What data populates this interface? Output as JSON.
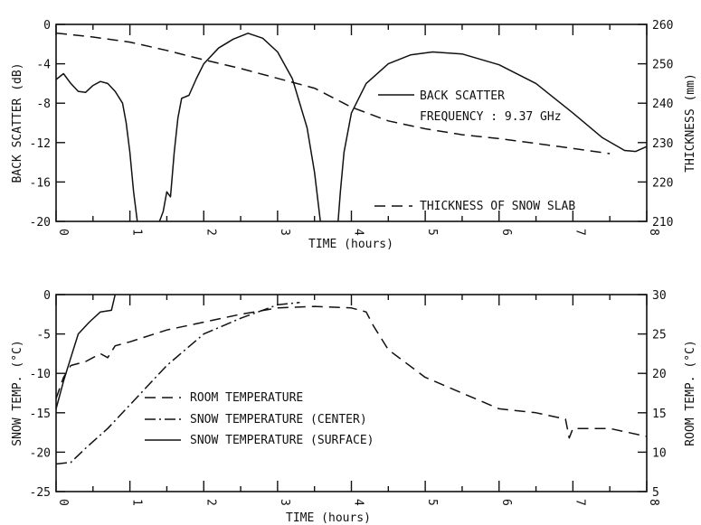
{
  "chart_data": [
    {
      "type": "line",
      "xlabel": "TIME (hours)",
      "ylabel": "BACK SCATTER (dB)",
      "y2label": "THICKNESS (mm)",
      "xlim": [
        0,
        8
      ],
      "ylim": [
        -20,
        0
      ],
      "y2lim": [
        210,
        260
      ],
      "xticks": [
        "0",
        "1",
        "2",
        "3",
        "4",
        "5",
        "6",
        "7",
        "8"
      ],
      "yticks": [
        "0",
        "-4",
        "-8",
        "-12",
        "-16",
        "-20"
      ],
      "y2ticks": [
        "260",
        "250",
        "240",
        "230",
        "220",
        "210"
      ],
      "legend": [
        "BACK SCATTER",
        "FREQUENCY : 9.37 GHz",
        "THICKNESS OF SNOW SLAB"
      ],
      "series": [
        {
          "name": "BACK SCATTER",
          "axis": "left",
          "style": "solid",
          "segments": [
            [
              [
                0,
                -5.6
              ],
              [
                0.1,
                -5.0
              ],
              [
                0.2,
                -6.0
              ],
              [
                0.3,
                -6.8
              ],
              [
                0.4,
                -6.9
              ],
              [
                0.5,
                -6.2
              ],
              [
                0.6,
                -5.8
              ],
              [
                0.7,
                -6.0
              ],
              [
                0.8,
                -6.8
              ],
              [
                0.9,
                -8.0
              ],
              [
                0.95,
                -10
              ],
              [
                1.0,
                -13
              ],
              [
                1.05,
                -17
              ],
              [
                1.1,
                -20
              ]
            ],
            [
              [
                1.4,
                -20
              ],
              [
                1.45,
                -19
              ],
              [
                1.5,
                -17
              ],
              [
                1.55,
                -17.5
              ],
              [
                1.6,
                -13
              ],
              [
                1.65,
                -9.5
              ],
              [
                1.7,
                -7.5
              ],
              [
                1.8,
                -7.2
              ],
              [
                1.9,
                -5.5
              ],
              [
                2.0,
                -4.0
              ],
              [
                2.2,
                -2.4
              ],
              [
                2.4,
                -1.5
              ],
              [
                2.6,
                -0.9
              ],
              [
                2.8,
                -1.4
              ],
              [
                3.0,
                -2.8
              ],
              [
                3.2,
                -5.5
              ],
              [
                3.4,
                -10.5
              ],
              [
                3.5,
                -15
              ],
              [
                3.58,
                -20
              ]
            ],
            [
              [
                3.82,
                -20
              ],
              [
                3.85,
                -17
              ],
              [
                3.9,
                -13
              ],
              [
                4.0,
                -9
              ],
              [
                4.2,
                -6
              ],
              [
                4.5,
                -4.0
              ],
              [
                4.8,
                -3.1
              ],
              [
                5.1,
                -2.8
              ],
              [
                5.5,
                -3.0
              ],
              [
                6.0,
                -4.1
              ],
              [
                6.5,
                -6.0
              ],
              [
                7.0,
                -9.0
              ],
              [
                7.4,
                -11.5
              ],
              [
                7.7,
                -12.8
              ],
              [
                7.85,
                -12.9
              ],
              [
                8.0,
                -12.4
              ]
            ]
          ]
        },
        {
          "name": "THICKNESS OF SNOW SLAB",
          "axis": "right",
          "style": "dashed",
          "segments": [
            [
              [
                0,
                257.8
              ],
              [
                0.5,
                256.8
              ],
              [
                1.0,
                255.5
              ],
              [
                1.5,
                253.4
              ],
              [
                2.0,
                251.0
              ],
              [
                2.5,
                248.8
              ],
              [
                3.0,
                246.3
              ],
              [
                3.5,
                243.8
              ],
              [
                4.0,
                239.0
              ],
              [
                4.5,
                235.5
              ],
              [
                5.0,
                233.5
              ],
              [
                5.5,
                232.0
              ],
              [
                6.0,
                231.0
              ],
              [
                6.5,
                229.8
              ],
              [
                7.0,
                228.5
              ],
              [
                7.5,
                227.2
              ]
            ]
          ]
        }
      ]
    },
    {
      "type": "line",
      "xlabel": "TIME (hours)",
      "ylabel": "SNOW TEMP. (°C)",
      "y2label": "ROOM TEMP. (°C)",
      "xlim": [
        0,
        8
      ],
      "ylim": [
        -25,
        0
      ],
      "y2lim": [
        5,
        30
      ],
      "xticks": [
        "0",
        "1",
        "2",
        "3",
        "4",
        "5",
        "6",
        "7",
        "8"
      ],
      "yticks": [
        "0",
        "-5",
        "-10",
        "-15",
        "-20",
        "-25"
      ],
      "y2ticks": [
        "30",
        "25",
        "20",
        "15",
        "10",
        "5"
      ],
      "legend": [
        "ROOM TEMPERATURE",
        "SNOW TEMPERATURE (CENTER)",
        "SNOW TEMPERATURE (SURFACE)"
      ],
      "series": [
        {
          "name": "ROOM TEMPERATURE",
          "axis": "right",
          "style": "dashed",
          "segments": [
            [
              [
                0,
                16.8
              ],
              [
                0.1,
                19.5
              ],
              [
                0.2,
                21.0
              ],
              [
                0.4,
                21.5
              ],
              [
                0.6,
                22.5
              ],
              [
                0.7,
                22.0
              ],
              [
                0.8,
                23.5
              ],
              [
                1.0,
                24.0
              ],
              [
                1.5,
                25.5
              ],
              [
                2.0,
                26.5
              ],
              [
                2.5,
                27.5
              ],
              [
                3.0,
                28.3
              ],
              [
                3.5,
                28.5
              ],
              [
                4.0,
                28.3
              ],
              [
                4.2,
                27.8
              ],
              [
                4.3,
                26.0
              ],
              [
                4.5,
                23.0
              ],
              [
                5.0,
                19.5
              ],
              [
                5.5,
                17.5
              ],
              [
                6.0,
                15.5
              ],
              [
                6.5,
                15.0
              ],
              [
                6.9,
                14.2
              ],
              [
                6.95,
                11.8
              ],
              [
                7.0,
                13.0
              ],
              [
                7.5,
                13.0
              ],
              [
                8.0,
                12.0
              ]
            ]
          ]
        },
        {
          "name": "SNOW TEMPERATURE (CENTER)",
          "axis": "left",
          "style": "dashdot",
          "segments": [
            [
              [
                0,
                -21.5
              ],
              [
                0.2,
                -21.3
              ],
              [
                0.4,
                -19.5
              ],
              [
                0.7,
                -17.0
              ],
              [
                1.0,
                -14.0
              ],
              [
                1.5,
                -9.0
              ],
              [
                2.0,
                -5.0
              ],
              [
                2.5,
                -3.0
              ],
              [
                3.0,
                -1.3
              ],
              [
                3.3,
                -1.0
              ]
            ]
          ]
        },
        {
          "name": "SNOW TEMPERATURE (SURFACE)",
          "axis": "left",
          "style": "solid",
          "segments": [
            [
              [
                0,
                -14.5
              ],
              [
                0.1,
                -11.0
              ],
              [
                0.2,
                -8.0
              ],
              [
                0.3,
                -5.0
              ],
              [
                0.45,
                -3.5
              ],
              [
                0.6,
                -2.2
              ],
              [
                0.75,
                -2.0
              ],
              [
                0.8,
                0.0
              ]
            ]
          ]
        }
      ]
    }
  ]
}
